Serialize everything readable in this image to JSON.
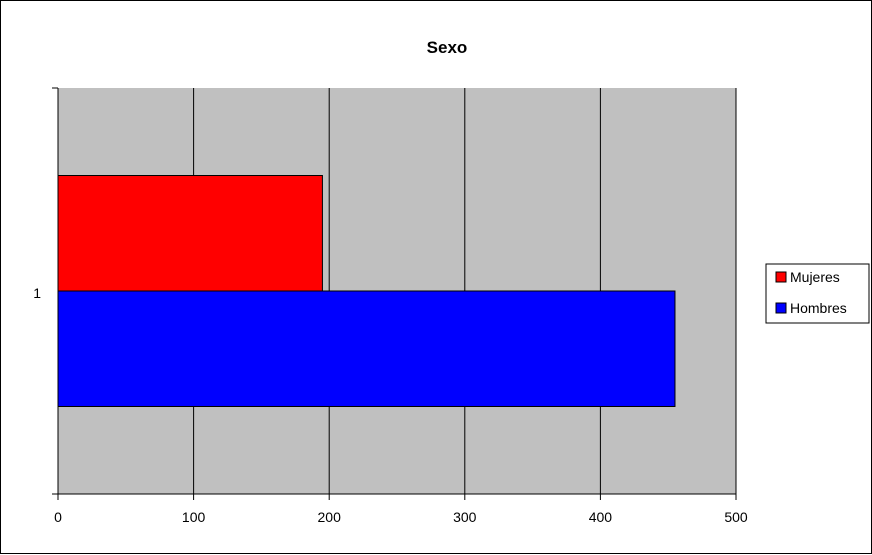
{
  "chart_data": {
    "type": "bar",
    "orientation": "horizontal",
    "title": "Sexo",
    "categories": [
      "1"
    ],
    "series": [
      {
        "name": "Mujeres",
        "values": [
          195
        ],
        "color": "#ff0000"
      },
      {
        "name": "Hombres",
        "values": [
          455
        ],
        "color": "#0000ff"
      }
    ],
    "xlim": [
      0,
      500
    ],
    "x_ticks": [
      "0",
      "100",
      "200",
      "300",
      "400",
      "500"
    ],
    "xlabel": "",
    "ylabel": "",
    "grid": true,
    "legend_position": "right",
    "plot_background": "#c0c0c0"
  }
}
